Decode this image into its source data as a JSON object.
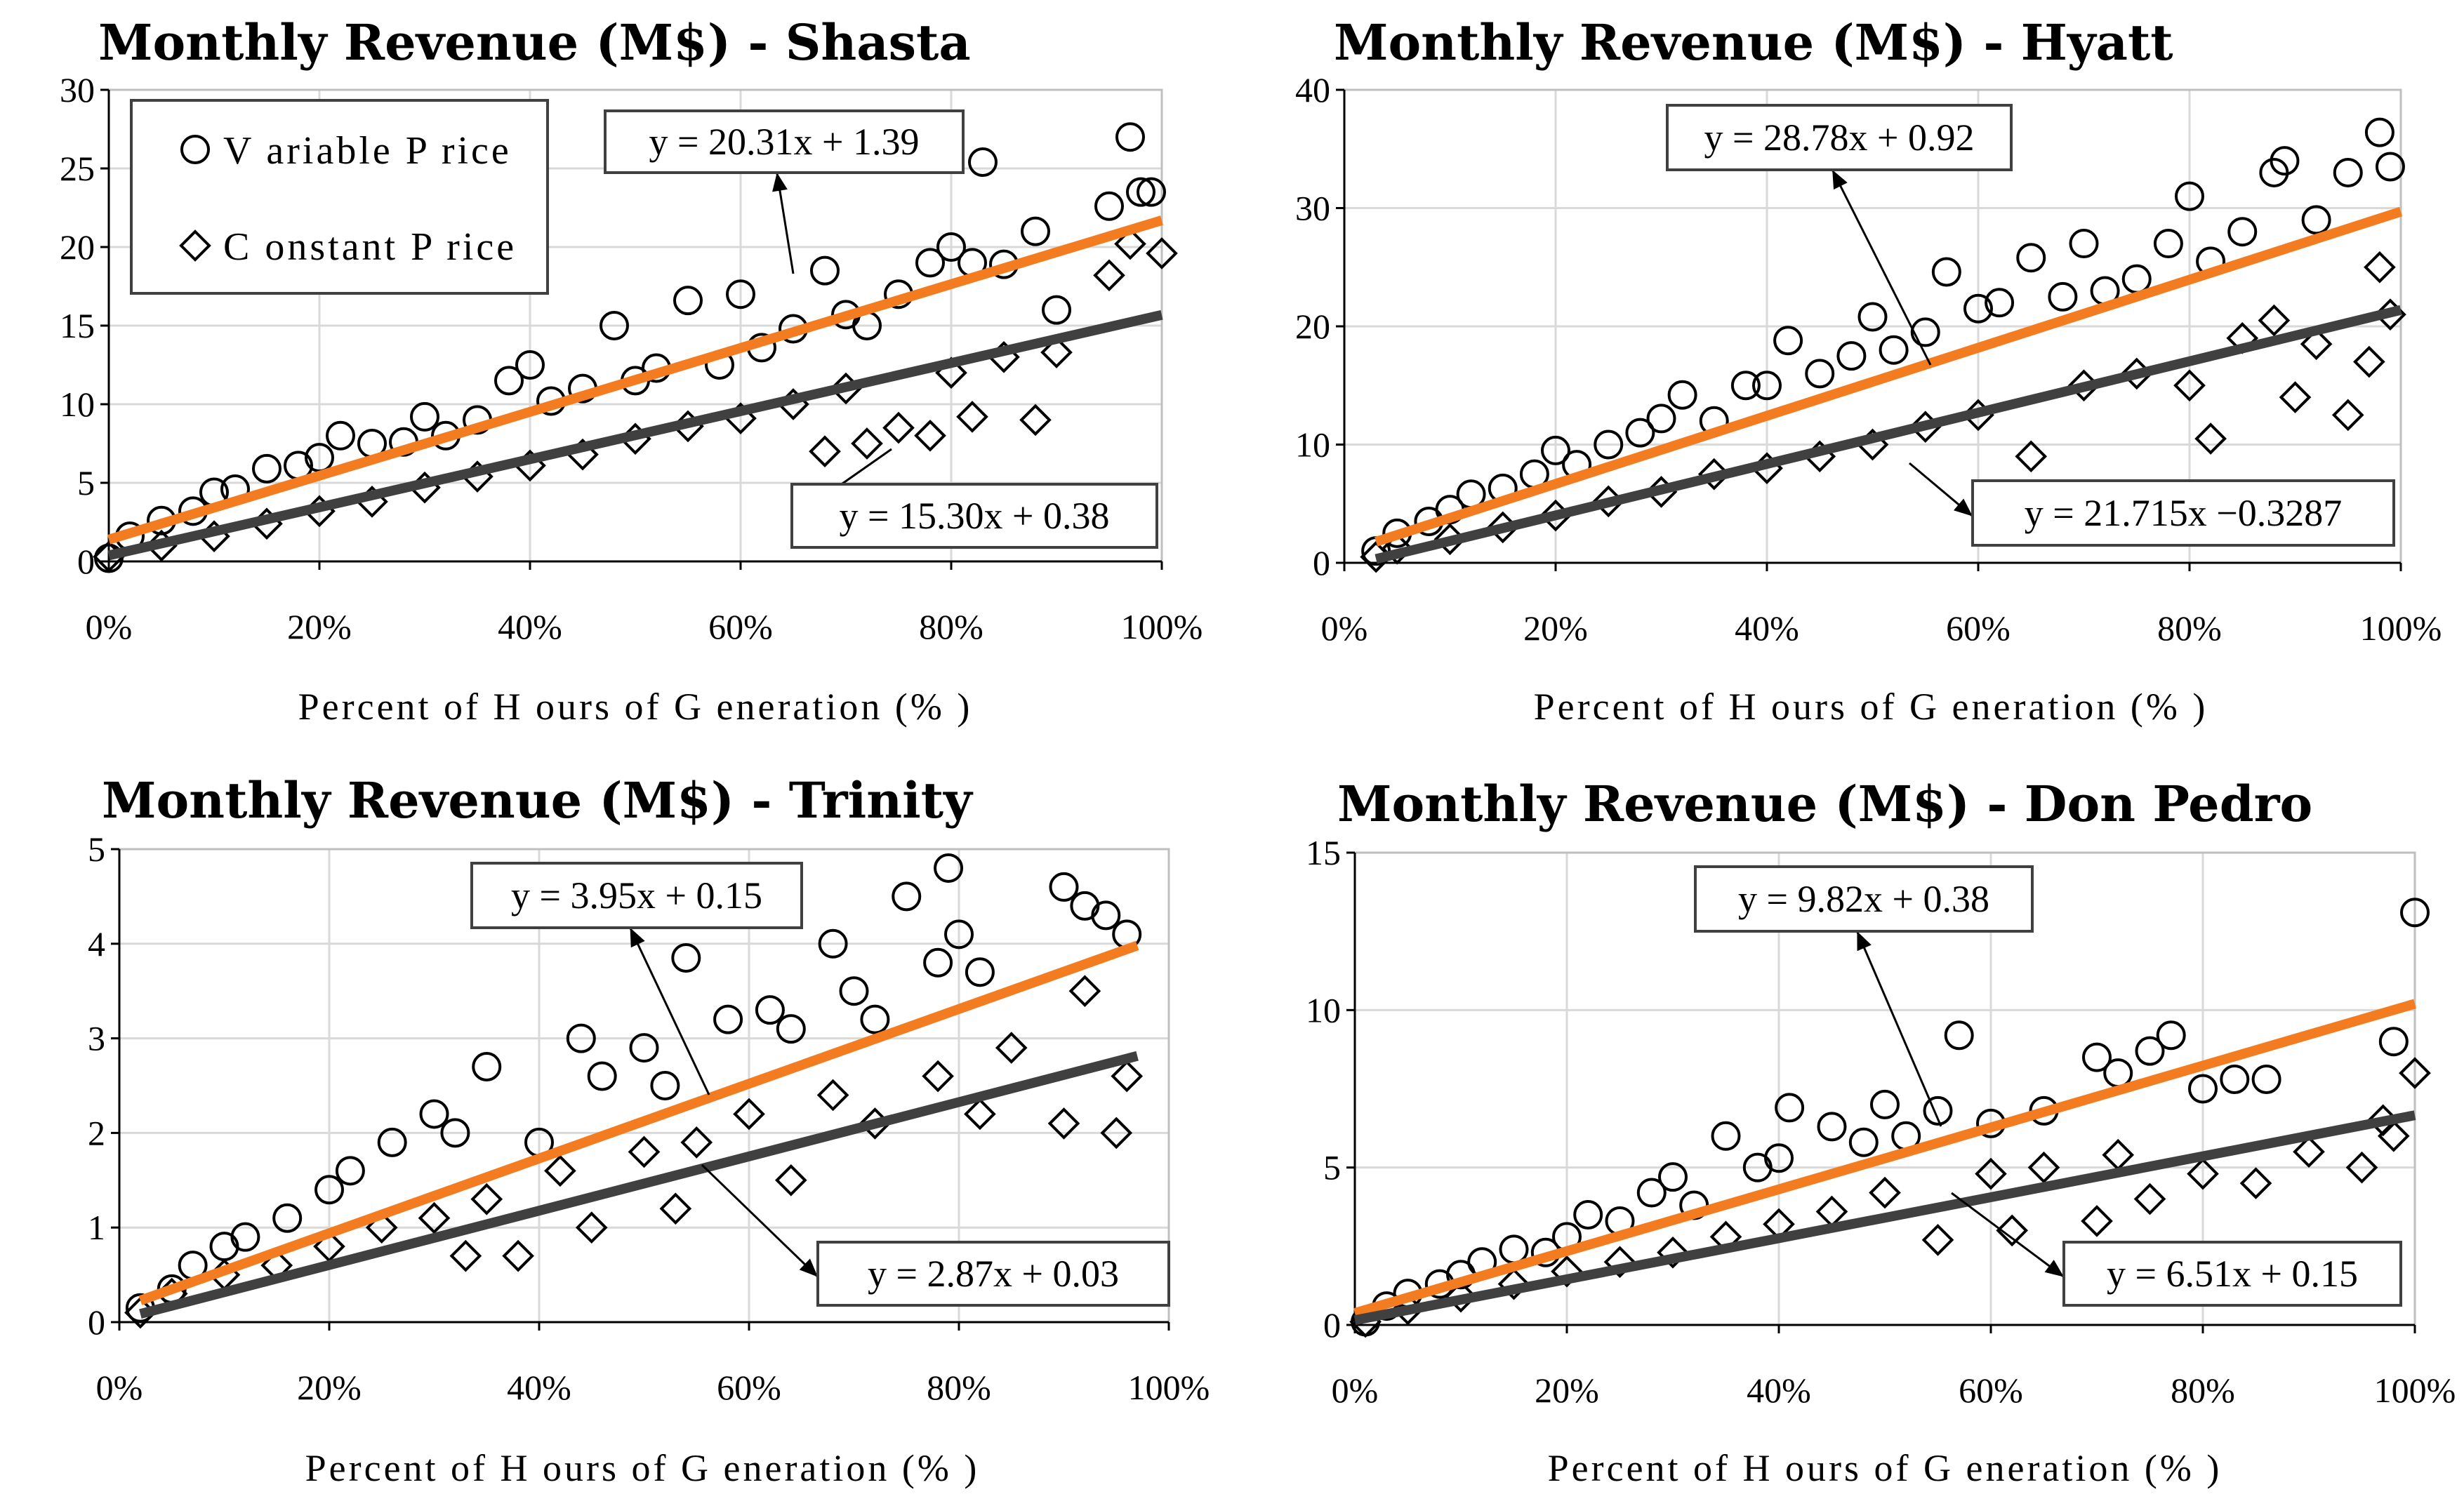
{
  "colors": {
    "variable_trend": "#f47c20",
    "constant_trend": "#404040",
    "markers": "#000000",
    "gridlines": "#d9d9d9"
  },
  "legend": {
    "variable_label": "V ariable P rice",
    "constant_label": "C onstant P rice",
    "variable_marker": "circle",
    "constant_marker": "diamond"
  },
  "chart_data": [
    {
      "type": "scatter",
      "title": "Monthly Revenue (M$) - Shasta",
      "xlabel": "Percent of H ours of G eneration (% )",
      "ylabel": "",
      "xlim": [
        0,
        1
      ],
      "ylim": [
        0,
        30
      ],
      "yticks": [
        0,
        5,
        10,
        15,
        20,
        25,
        30
      ],
      "ytick_labels": [
        "0",
        "5",
        "10",
        "15",
        "20",
        "25",
        "30"
      ],
      "xticks": [
        0,
        0.2,
        0.4,
        0.6,
        0.8,
        1.0
      ],
      "xtick_labels": [
        "0%",
        "20%",
        "40%",
        "60%",
        "80%",
        "100%"
      ],
      "grid": true,
      "legend": "top-left",
      "series": [
        {
          "name": "Variable Price",
          "marker": "circle",
          "x": [
            0.0,
            0.02,
            0.05,
            0.08,
            0.1,
            0.12,
            0.15,
            0.18,
            0.2,
            0.22,
            0.25,
            0.28,
            0.3,
            0.32,
            0.35,
            0.38,
            0.4,
            0.42,
            0.45,
            0.48,
            0.5,
            0.52,
            0.55,
            0.58,
            0.6,
            0.62,
            0.65,
            0.68,
            0.7,
            0.72,
            0.75,
            0.78,
            0.8,
            0.82,
            0.83,
            0.85,
            0.88,
            0.9,
            0.95,
            0.97,
            0.98,
            0.99
          ],
          "y": [
            0.2,
            1.6,
            2.6,
            3.2,
            4.4,
            4.6,
            5.9,
            6.1,
            6.6,
            8.0,
            7.5,
            7.6,
            9.2,
            8.0,
            9.0,
            11.5,
            12.5,
            10.2,
            11.0,
            15.0,
            11.5,
            12.3,
            16.6,
            12.5,
            17.0,
            13.6,
            14.8,
            18.5,
            15.7,
            15.0,
            17.0,
            19.0,
            20.0,
            19.0,
            25.4,
            18.9,
            21.0,
            16.0,
            22.6,
            27.0,
            23.5,
            23.5
          ]
        },
        {
          "name": "Constant Price",
          "marker": "diamond",
          "x": [
            0.0,
            0.05,
            0.1,
            0.15,
            0.2,
            0.25,
            0.3,
            0.35,
            0.4,
            0.45,
            0.5,
            0.55,
            0.6,
            0.65,
            0.68,
            0.7,
            0.72,
            0.75,
            0.78,
            0.8,
            0.82,
            0.85,
            0.88,
            0.9,
            0.95,
            0.97,
            1.0
          ],
          "y": [
            0.3,
            1.0,
            1.6,
            2.4,
            3.2,
            3.8,
            4.7,
            5.4,
            6.1,
            6.8,
            7.8,
            8.6,
            9.1,
            10.0,
            7.0,
            11.0,
            7.5,
            8.5,
            8.0,
            12.0,
            9.2,
            13.0,
            9.0,
            13.3,
            18.2,
            20.2,
            19.6
          ]
        }
      ],
      "trendlines": [
        {
          "name": "Variable Price trend",
          "slope": 20.31,
          "intercept": 1.39,
          "x_range": [
            0.0,
            1.0
          ],
          "equation": "y = 20.31x + 1.39"
        },
        {
          "name": "Constant Price trend",
          "slope": 15.3,
          "intercept": 0.38,
          "x_range": [
            0.0,
            1.0
          ],
          "equation": "y = 15.30x + 0.38"
        }
      ]
    },
    {
      "type": "scatter",
      "title": "Monthly Revenue (M$) - Hyatt",
      "xlabel": "Percent of H ours of G eneration (% )",
      "ylabel": "",
      "xlim": [
        0,
        1
      ],
      "ylim": [
        0,
        40
      ],
      "yticks": [
        0,
        10,
        20,
        30,
        40
      ],
      "ytick_labels": [
        "0",
        "10",
        "20",
        "30",
        "40"
      ],
      "xticks": [
        0,
        0.2,
        0.4,
        0.6,
        0.8,
        1.0
      ],
      "xtick_labels": [
        "0%",
        "20%",
        "40%",
        "60%",
        "80%",
        "100%"
      ],
      "grid": true,
      "legend": "none",
      "series": [
        {
          "name": "Variable Price",
          "marker": "circle",
          "x": [
            0.03,
            0.05,
            0.08,
            0.1,
            0.12,
            0.15,
            0.18,
            0.2,
            0.22,
            0.25,
            0.28,
            0.3,
            0.32,
            0.35,
            0.38,
            0.4,
            0.42,
            0.45,
            0.48,
            0.5,
            0.52,
            0.55,
            0.57,
            0.6,
            0.62,
            0.65,
            0.68,
            0.7,
            0.72,
            0.75,
            0.78,
            0.8,
            0.82,
            0.85,
            0.88,
            0.89,
            0.92,
            0.95,
            0.98,
            0.99
          ],
          "y": [
            1.0,
            2.5,
            3.5,
            4.5,
            5.8,
            6.3,
            7.5,
            9.5,
            8.3,
            10.0,
            11.0,
            12.2,
            14.2,
            12.0,
            15.0,
            15.0,
            18.8,
            16.0,
            17.5,
            20.8,
            18.0,
            19.5,
            24.6,
            21.5,
            22.0,
            25.8,
            22.5,
            27.0,
            23.0,
            24.0,
            27.0,
            31.0,
            25.5,
            28.0,
            33.0,
            34.0,
            29.0,
            33.0,
            36.4,
            33.5
          ]
        },
        {
          "name": "Constant Price",
          "marker": "diamond",
          "x": [
            0.03,
            0.05,
            0.1,
            0.15,
            0.2,
            0.25,
            0.3,
            0.35,
            0.4,
            0.45,
            0.5,
            0.55,
            0.6,
            0.65,
            0.7,
            0.75,
            0.8,
            0.82,
            0.85,
            0.88,
            0.9,
            0.92,
            0.95,
            0.97,
            0.98,
            0.99
          ],
          "y": [
            0.5,
            1.2,
            2.0,
            3.0,
            4.0,
            5.2,
            6.0,
            7.5,
            8.0,
            9.0,
            10.0,
            11.5,
            12.5,
            9.0,
            15.0,
            16.0,
            15.0,
            10.5,
            19.0,
            20.5,
            14.0,
            18.5,
            12.5,
            17.0,
            25.0,
            21.0
          ]
        }
      ],
      "trendlines": [
        {
          "name": "Variable Price trend",
          "slope": 28.78,
          "intercept": 0.92,
          "x_range": [
            0.03,
            1.0
          ],
          "equation": "y = 28.78x + 0.92"
        },
        {
          "name": "Constant Price trend",
          "slope": 21.715,
          "intercept": -0.3287,
          "x_range": [
            0.03,
            1.0
          ],
          "equation": "y = 21.715x −0.3287"
        }
      ]
    },
    {
      "type": "scatter",
      "title": "Monthly Revenue (M$) - Trinity",
      "xlabel": "Percent of H ours of G eneration (% )",
      "ylabel": "",
      "xlim": [
        0,
        1
      ],
      "ylim": [
        0,
        5
      ],
      "yticks": [
        0,
        1,
        2,
        3,
        4,
        5
      ],
      "ytick_labels": [
        "0",
        "1",
        "2",
        "3",
        "4",
        "5"
      ],
      "xticks": [
        0,
        0.2,
        0.4,
        0.6,
        0.8,
        1.0
      ],
      "xtick_labels": [
        "0%",
        "20%",
        "40%",
        "60%",
        "80%",
        "100%"
      ],
      "grid": true,
      "legend": "none",
      "series": [
        {
          "name": "Variable Price",
          "marker": "circle",
          "x": [
            0.02,
            0.05,
            0.07,
            0.1,
            0.12,
            0.16,
            0.2,
            0.22,
            0.26,
            0.3,
            0.32,
            0.35,
            0.4,
            0.44,
            0.46,
            0.5,
            0.52,
            0.54,
            0.58,
            0.62,
            0.64,
            0.68,
            0.7,
            0.72,
            0.75,
            0.78,
            0.79,
            0.8,
            0.82,
            0.9,
            0.92,
            0.94,
            0.96
          ],
          "y": [
            0.15,
            0.35,
            0.6,
            0.8,
            0.9,
            1.1,
            1.4,
            1.6,
            1.9,
            2.2,
            2.0,
            2.7,
            1.9,
            3.0,
            2.6,
            2.9,
            2.5,
            3.85,
            3.2,
            3.3,
            3.1,
            4.0,
            3.5,
            3.2,
            4.5,
            3.8,
            4.8,
            4.1,
            3.7,
            4.6,
            4.4,
            4.3,
            4.1
          ]
        },
        {
          "name": "Constant Price",
          "marker": "diamond",
          "x": [
            0.02,
            0.05,
            0.1,
            0.15,
            0.2,
            0.25,
            0.3,
            0.33,
            0.35,
            0.38,
            0.42,
            0.45,
            0.5,
            0.53,
            0.55,
            0.6,
            0.64,
            0.68,
            0.72,
            0.78,
            0.82,
            0.85,
            0.9,
            0.92,
            0.95,
            0.96
          ],
          "y": [
            0.1,
            0.3,
            0.5,
            0.6,
            0.8,
            1.0,
            1.1,
            0.7,
            1.3,
            0.7,
            1.6,
            1.0,
            1.8,
            1.2,
            1.9,
            2.2,
            1.5,
            2.4,
            2.1,
            2.6,
            2.2,
            2.9,
            2.1,
            3.5,
            2.0,
            2.6
          ]
        }
      ],
      "trendlines": [
        {
          "name": "Variable Price trend",
          "slope": 3.95,
          "intercept": 0.15,
          "x_range": [
            0.02,
            0.97
          ],
          "equation": "y = 3.95x + 0.15"
        },
        {
          "name": "Constant Price trend",
          "slope": 2.87,
          "intercept": 0.03,
          "x_range": [
            0.02,
            0.97
          ],
          "equation": "y = 2.87x + 0.03"
        }
      ]
    },
    {
      "type": "scatter",
      "title": "Monthly Revenue (M$) - Don Pedro",
      "xlabel": "Percent of H ours of G eneration (% )",
      "ylabel": "",
      "xlim": [
        0,
        1
      ],
      "ylim": [
        0,
        15
      ],
      "yticks": [
        0,
        5,
        10,
        15
      ],
      "ytick_labels": [
        "0",
        "5",
        "10",
        "15"
      ],
      "xticks": [
        0,
        0.2,
        0.4,
        0.6,
        0.8,
        1.0
      ],
      "xtick_labels": [
        "0%",
        "20%",
        "40%",
        "60%",
        "80%",
        "100%"
      ],
      "grid": true,
      "legend": "none",
      "series": [
        {
          "name": "Variable Price",
          "marker": "circle",
          "x": [
            0.01,
            0.03,
            0.05,
            0.08,
            0.1,
            0.12,
            0.15,
            0.18,
            0.2,
            0.22,
            0.25,
            0.28,
            0.3,
            0.32,
            0.35,
            0.38,
            0.4,
            0.41,
            0.45,
            0.48,
            0.5,
            0.52,
            0.55,
            0.57,
            0.6,
            0.65,
            0.7,
            0.72,
            0.75,
            0.77,
            0.8,
            0.83,
            0.86,
            0.98,
            1.0
          ],
          "y": [
            0.1,
            0.6,
            1.0,
            1.3,
            1.6,
            2.0,
            2.4,
            2.3,
            2.8,
            3.5,
            3.3,
            4.2,
            4.7,
            3.8,
            6.0,
            5.0,
            5.3,
            6.9,
            6.3,
            5.8,
            7.0,
            6.0,
            6.8,
            9.2,
            6.4,
            6.8,
            8.5,
            8.0,
            8.7,
            9.2,
            7.5,
            7.8,
            7.8,
            9.0,
            13.1
          ]
        },
        {
          "name": "Constant Price",
          "marker": "diamond",
          "x": [
            0.01,
            0.05,
            0.1,
            0.15,
            0.2,
            0.25,
            0.3,
            0.35,
            0.4,
            0.45,
            0.5,
            0.55,
            0.6,
            0.62,
            0.65,
            0.7,
            0.72,
            0.75,
            0.8,
            0.85,
            0.9,
            0.95,
            0.97,
            0.98,
            1.0
          ],
          "y": [
            0.1,
            0.5,
            0.9,
            1.3,
            1.7,
            2.0,
            2.3,
            2.8,
            3.2,
            3.6,
            4.2,
            2.7,
            4.8,
            3.0,
            5.0,
            3.3,
            5.4,
            4.0,
            4.8,
            4.5,
            5.5,
            5.0,
            6.5,
            6.0,
            8.0
          ]
        }
      ],
      "trendlines": [
        {
          "name": "Variable Price trend",
          "slope": 9.82,
          "intercept": 0.38,
          "x_range": [
            0.0,
            1.0
          ],
          "equation": "y = 9.82x + 0.38"
        },
        {
          "name": "Constant Price trend",
          "slope": 6.51,
          "intercept": 0.15,
          "x_range": [
            0.0,
            1.0
          ],
          "equation": "y = 6.51x + 0.15"
        }
      ]
    }
  ]
}
